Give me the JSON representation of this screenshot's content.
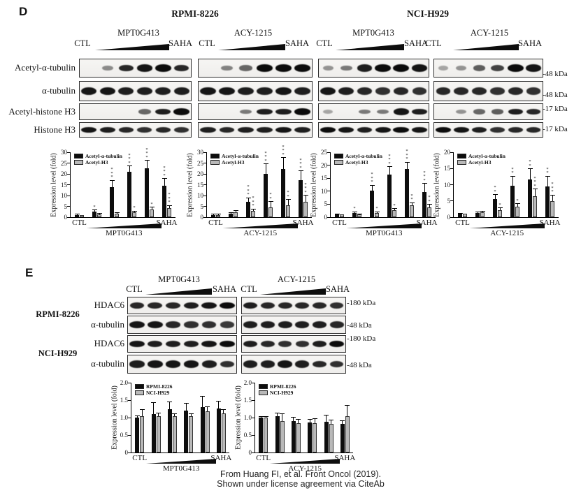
{
  "panel_d": {
    "label": "D",
    "cell_lines": [
      "RPMI-8226",
      "NCI-H929"
    ],
    "row_labels": [
      "Acetyl-α-tubulin",
      "α-tubulin",
      "Acetyl-histone H3",
      "Histone H3"
    ],
    "kda_labels": [
      "-48 kDa",
      "-48 kDa",
      "-17 kDa",
      "-17 kDa"
    ],
    "lane_axis": {
      "start": "CTL",
      "end": "SAHA"
    },
    "groups": [
      {
        "cell_line": "RPMI-8226",
        "treatment": "MPT0G413",
        "band_intensities": {
          "acetyl_a_tubulin": [
            0,
            0.25,
            0.8,
            0.9,
            0.95,
            0.8
          ],
          "a_tubulin": [
            0.9,
            0.9,
            0.85,
            0.85,
            0.85,
            0.85
          ],
          "acetyl_h3": [
            0,
            0,
            0,
            0.45,
            0.85,
            0.95
          ],
          "histone_h3": [
            0.9,
            0.85,
            0.8,
            0.75,
            0.8,
            0.75
          ]
        }
      },
      {
        "cell_line": "RPMI-8226",
        "treatment": "ACY-1215",
        "band_intensities": {
          "acetyl_a_tubulin": [
            0,
            0.3,
            0.45,
            1,
            1,
            0.95
          ],
          "a_tubulin": [
            0.9,
            0.9,
            0.85,
            0.85,
            0.9,
            0.85
          ],
          "acetyl_h3": [
            0,
            0,
            0.35,
            0.85,
            0.85,
            1
          ],
          "histone_h3": [
            0.85,
            0.8,
            0.85,
            0.85,
            0.9,
            0.85
          ]
        }
      },
      {
        "cell_line": "NCI-H929",
        "treatment": "MPT0G413",
        "band_intensities": {
          "acetyl_a_tubulin": [
            0.2,
            0.35,
            0.85,
            0.95,
            1,
            0.9
          ],
          "a_tubulin": [
            0.9,
            0.85,
            0.8,
            0.75,
            0.8,
            0.75
          ],
          "acetyl_h3": [
            0.1,
            0,
            0.35,
            0.35,
            0.9,
            0.85
          ],
          "histone_h3": [
            0.95,
            0.9,
            0.85,
            0.9,
            0.95,
            0.9
          ]
        }
      },
      {
        "cell_line": "NCI-H929",
        "treatment": "ACY-1215",
        "band_intensities": {
          "acetyl_a_tubulin": [
            0.1,
            0.2,
            0.5,
            0.65,
            1,
            0.9
          ],
          "a_tubulin": [
            0.8,
            0.8,
            0.8,
            0.75,
            0.8,
            0.75
          ],
          "acetyl_h3": [
            0,
            0.2,
            0.45,
            0.5,
            0.85,
            0.8
          ],
          "histone_h3": [
            0.95,
            0.9,
            0.85,
            0.75,
            0.8,
            0.8
          ]
        }
      }
    ],
    "charts": [
      {
        "type": "bar",
        "ylabel": "Expression level (fold)",
        "ymax": 30,
        "yticks": [
          "0",
          "5",
          "10",
          "15",
          "20",
          "25",
          "30"
        ],
        "x_start": "CTL",
        "x_end": "SAHA",
        "treatment": "MPT0G413",
        "colors": {
          "black": "#0d0d0d",
          "gray": "#b9b9b9"
        },
        "series": [
          {
            "name": "Acetyl-α-tubulin",
            "color": "#0d0d0d",
            "values": [
              1,
              2.5,
              14,
              21,
              22.5,
              14.5
            ],
            "errors": [
              0.2,
              0.6,
              2.8,
              2.5,
              3.5,
              3.2
            ],
            "sig": [
              "",
              "*",
              "***",
              "***",
              "***",
              "***"
            ]
          },
          {
            "name": "Acetyl-H3",
            "color": "#b9b9b9",
            "values": [
              1,
              1.4,
              1.5,
              2.2,
              3.7,
              4.2
            ],
            "errors": [
              0.15,
              0.3,
              0.3,
              0.5,
              0.8,
              1.0
            ],
            "sig": [
              "",
              "",
              "",
              "*",
              "*",
              "***"
            ]
          }
        ]
      },
      {
        "type": "bar",
        "ylabel": "Expression level (fold)",
        "ymax": 30,
        "yticks": [
          "0",
          "5",
          "10",
          "15",
          "20",
          "25",
          "30"
        ],
        "x_start": "CTL",
        "x_end": "SAHA",
        "treatment": "ACY-1215",
        "colors": {
          "black": "#0d0d0d",
          "gray": "#b9b9b9"
        },
        "series": [
          {
            "name": "Acetyl-α-tubulin",
            "color": "#0d0d0d",
            "values": [
              1,
              1.5,
              7,
              20,
              22.3,
              17.2
            ],
            "errors": [
              0.2,
              0.4,
              1.8,
              4.5,
              5,
              4
            ],
            "sig": [
              "",
              "",
              "***",
              "***",
              "***",
              "***"
            ]
          },
          {
            "name": "Acetyl-H3",
            "color": "#b9b9b9",
            "values": [
              1,
              2.3,
              2.8,
              4.6,
              5.5,
              7
            ],
            "errors": [
              0.2,
              0.5,
              0.8,
              2.5,
              2.5,
              3
            ],
            "sig": [
              "",
              "",
              "***",
              "**",
              "**",
              "***"
            ]
          }
        ]
      },
      {
        "type": "bar",
        "ylabel": "Expression level (fold)",
        "ymax": 25,
        "yticks": [
          "0",
          "5",
          "10",
          "15",
          "20",
          "25"
        ],
        "x_start": "CTL",
        "x_end": "SAHA",
        "treatment": "MPT0G413",
        "colors": {
          "black": "#0d0d0d",
          "gray": "#b9b9b9"
        },
        "series": [
          {
            "name": "Acetyl-α-tubulin",
            "color": "#0d0d0d",
            "values": [
              1,
              1.5,
              10.2,
              16.3,
              18.6,
              9.8
            ],
            "errors": [
              0.15,
              0.4,
              2,
              3,
              2.5,
              3
            ],
            "sig": [
              "",
              "*",
              "***",
              "***",
              "***",
              "***"
            ]
          },
          {
            "name": "Acetyl-H3",
            "color": "#b9b9b9",
            "values": [
              1,
              1,
              1.5,
              2.6,
              4.7,
              3.8
            ],
            "errors": [
              0.1,
              0.2,
              0.4,
              0.6,
              0.8,
              1
            ],
            "sig": [
              "",
              "",
              "*",
              "*",
              "**",
              "**"
            ]
          }
        ]
      },
      {
        "type": "bar",
        "ylabel": "Expression level (fold)",
        "ymax": 20,
        "yticks": [
          "0",
          "5",
          "10",
          "15",
          "20"
        ],
        "x_start": "CTL",
        "x_end": "SAHA",
        "treatment": "ACY-1215",
        "colors": {
          "black": "#0d0d0d",
          "gray": "#b9b9b9"
        },
        "series": [
          {
            "name": "Acetyl-α-tubulin",
            "color": "#0d0d0d",
            "values": [
              1,
              1.2,
              5.6,
              9.7,
              11.6,
              9.5
            ],
            "errors": [
              0.15,
              0.3,
              1.2,
              2.8,
              3.2,
              3
            ],
            "sig": [
              "",
              "",
              "**",
              "**",
              "**",
              "**"
            ]
          },
          {
            "name": "Acetyl-H3",
            "color": "#b9b9b9",
            "values": [
              1,
              1.5,
              2.2,
              3.2,
              6.4,
              4.9
            ],
            "errors": [
              0.1,
              0.3,
              0.5,
              0.8,
              2.2,
              1.8
            ],
            "sig": [
              "",
              "",
              "*",
              "*",
              "***",
              "***"
            ]
          }
        ]
      }
    ]
  },
  "panel_e": {
    "label": "E",
    "treatments": [
      "MPT0G413",
      "ACY-1215"
    ],
    "cell_lines": [
      "RPMI-8226",
      "NCI-H929"
    ],
    "row_labels": [
      "HDAC6",
      "α-tubulin",
      "HDAC6",
      "α-tubulin"
    ],
    "kda_labels": [
      "-180 kDa",
      "-48 kDa",
      "-180 kDa",
      "-48 kDa"
    ],
    "lane_axis": {
      "start": "CTL",
      "end": "SAHA"
    },
    "band_intensities": {
      "rpmi_mpt_hdac6": [
        0.8,
        0.8,
        0.8,
        0.85,
        0.9,
        0.95
      ],
      "rpmi_mpt_atub": [
        0.9,
        0.9,
        0.8,
        0.75,
        0.75,
        0.7
      ],
      "rpmi_acy_hdac6": [
        0.85,
        0.8,
        0.8,
        0.8,
        0.8,
        0.75
      ],
      "rpmi_acy_atub": [
        0.85,
        0.85,
        0.85,
        0.85,
        0.85,
        0.8
      ],
      "nci_mpt_hdac6": [
        0.9,
        0.85,
        0.85,
        0.85,
        0.9,
        0.95
      ],
      "nci_mpt_atub": [
        0.85,
        0.9,
        0.9,
        0.9,
        0.85,
        0.75
      ],
      "nci_acy_hdac6": [
        0.85,
        0.8,
        0.75,
        0.75,
        0.85,
        0.95
      ],
      "nci_acy_atub": [
        0.85,
        0.85,
        0.9,
        0.85,
        0.8,
        0.75
      ]
    },
    "charts": [
      {
        "type": "bar",
        "ylabel": "Expression level (fold)",
        "ymax": 2.0,
        "yticks": [
          "0",
          "0.5",
          "1.0",
          "1.5",
          "2.0"
        ],
        "x_start": "CTL",
        "x_end": "SAHA",
        "treatment": "MPT0G413",
        "colors": {
          "black": "#0d0d0d",
          "gray": "#b9b9b9"
        },
        "series": [
          {
            "name": "RPMI-8226",
            "color": "#0d0d0d",
            "values": [
              1.0,
              1.1,
              1.25,
              1.2,
              1.3,
              1.27
            ],
            "errors": [
              0.05,
              0.33,
              0.2,
              0.2,
              0.3,
              0.2
            ],
            "sig": [
              "",
              "",
              "",
              "",
              "",
              ""
            ]
          },
          {
            "name": "NCI-H929",
            "color": "#b9b9b9",
            "values": [
              1.05,
              1.05,
              1.05,
              1.05,
              1.18,
              1.12
            ],
            "errors": [
              0.17,
              0.08,
              0.05,
              0.05,
              0.12,
              0.1
            ],
            "sig": [
              "",
              "",
              "",
              "",
              "",
              ""
            ]
          }
        ]
      },
      {
        "type": "bar",
        "ylabel": "Expression level (fold)",
        "ymax": 2.0,
        "yticks": [
          "0",
          "0.5",
          "1.0",
          "1.5",
          "2.0"
        ],
        "x_start": "CTL",
        "x_end": "SAHA",
        "treatment": "ACY-1215",
        "colors": {
          "black": "#0d0d0d",
          "gray": "#b9b9b9"
        },
        "series": [
          {
            "name": "RPMI-8226",
            "color": "#0d0d0d",
            "values": [
              1.0,
              1.04,
              0.9,
              0.86,
              0.88,
              0.83
            ],
            "errors": [
              0.02,
              0.08,
              0.1,
              0.08,
              0.18,
              0.07
            ],
            "sig": [
              "",
              "",
              "",
              "",
              "",
              ""
            ]
          },
          {
            "name": "NCI-H929",
            "color": "#b9b9b9",
            "values": [
              1.0,
              0.9,
              0.85,
              0.85,
              0.82,
              1.05
            ],
            "errors": [
              0.02,
              0.2,
              0.1,
              0.12,
              0.1,
              0.3
            ],
            "sig": [
              "",
              "",
              "",
              "",
              "",
              ""
            ]
          }
        ]
      }
    ]
  },
  "citation": {
    "line1": "From Huang FI, et al. Front Oncol (2019).",
    "line2": "Shown under license agreement via CiteAb"
  }
}
